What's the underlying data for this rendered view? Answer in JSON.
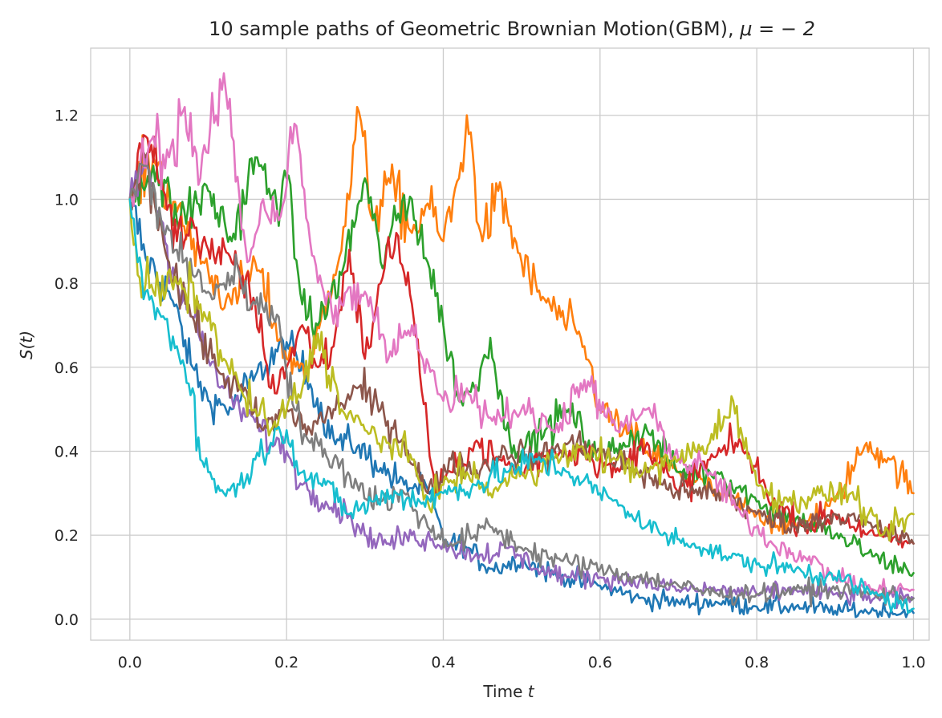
{
  "chart_data": {
    "type": "line",
    "title_text": "10 sample paths of Geometric Brownian Motion(GBM), ",
    "title_math": "μ = − 2",
    "xlabel_text": "Time ",
    "xlabel_math": "t",
    "ylabel": "S(t)",
    "xlim": [
      -0.05,
      1.02
    ],
    "ylim": [
      -0.05,
      1.36
    ],
    "xticks": [
      0.0,
      0.2,
      0.4,
      0.6,
      0.8,
      1.0
    ],
    "xtick_labels": [
      "0.0",
      "0.2",
      "0.4",
      "0.6",
      "0.8",
      "1.0"
    ],
    "yticks": [
      0.0,
      0.2,
      0.4,
      0.6,
      0.8,
      1.0,
      1.2
    ],
    "ytick_labels": [
      "0.0",
      "0.2",
      "0.4",
      "0.6",
      "0.8",
      "1.0",
      "1.2"
    ],
    "grid": true,
    "legend": "none",
    "series": [
      {
        "color": "#1f77b4",
        "x": [
          0,
          0.02,
          0.05,
          0.08,
          0.1,
          0.13,
          0.16,
          0.2,
          0.23,
          0.26,
          0.29,
          0.32,
          0.35,
          0.38,
          0.4,
          0.43,
          0.46,
          0.5,
          0.55,
          0.6,
          0.65,
          0.7,
          0.75,
          0.8,
          0.85,
          0.9,
          0.95,
          1.0
        ],
        "y": [
          1.0,
          0.86,
          0.78,
          0.6,
          0.52,
          0.5,
          0.58,
          0.66,
          0.56,
          0.43,
          0.41,
          0.36,
          0.32,
          0.31,
          0.19,
          0.17,
          0.12,
          0.14,
          0.1,
          0.08,
          0.05,
          0.04,
          0.04,
          0.03,
          0.03,
          0.02,
          0.02,
          0.015
        ]
      },
      {
        "color": "#ff7f0e",
        "x": [
          0,
          0.03,
          0.06,
          0.1,
          0.13,
          0.16,
          0.2,
          0.23,
          0.26,
          0.28,
          0.29,
          0.31,
          0.33,
          0.36,
          0.38,
          0.4,
          0.42,
          0.43,
          0.45,
          0.47,
          0.5,
          0.52,
          0.55,
          0.58,
          0.6,
          0.63,
          0.66,
          0.7,
          0.75,
          0.8,
          0.85,
          0.9,
          0.94,
          0.97,
          1.0
        ],
        "y": [
          1.0,
          1.1,
          0.97,
          0.83,
          0.75,
          0.85,
          0.62,
          0.6,
          0.82,
          1.0,
          1.22,
          0.95,
          1.05,
          0.92,
          0.99,
          0.9,
          1.05,
          1.2,
          0.9,
          1.02,
          0.85,
          0.78,
          0.72,
          0.65,
          0.5,
          0.45,
          0.4,
          0.35,
          0.3,
          0.25,
          0.22,
          0.28,
          0.42,
          0.38,
          0.3
        ]
      },
      {
        "color": "#2ca02c",
        "x": [
          0,
          0.03,
          0.06,
          0.1,
          0.13,
          0.16,
          0.18,
          0.2,
          0.22,
          0.24,
          0.27,
          0.3,
          0.32,
          0.34,
          0.36,
          0.38,
          0.4,
          0.42,
          0.44,
          0.46,
          0.48,
          0.5,
          0.53,
          0.56,
          0.6,
          0.63,
          0.66,
          0.7,
          0.75,
          0.8,
          0.85,
          0.9,
          0.95,
          1.0
        ],
        "y": [
          1.0,
          1.08,
          0.95,
          1.02,
          0.9,
          1.1,
          1.0,
          1.05,
          0.75,
          0.7,
          0.82,
          1.05,
          0.85,
          0.95,
          1.0,
          0.85,
          0.7,
          0.52,
          0.55,
          0.67,
          0.45,
          0.4,
          0.45,
          0.5,
          0.38,
          0.42,
          0.45,
          0.35,
          0.35,
          0.28,
          0.24,
          0.2,
          0.15,
          0.11
        ]
      },
      {
        "color": "#d62728",
        "x": [
          0,
          0.02,
          0.04,
          0.06,
          0.08,
          0.1,
          0.13,
          0.16,
          0.18,
          0.2,
          0.22,
          0.24,
          0.26,
          0.28,
          0.3,
          0.32,
          0.34,
          0.36,
          0.38,
          0.39,
          0.41,
          0.44,
          0.47,
          0.5,
          0.54,
          0.58,
          0.62,
          0.66,
          0.7,
          0.74,
          0.78,
          0.82,
          0.86,
          0.9,
          0.95,
          1.0
        ],
        "y": [
          1.0,
          1.15,
          1.05,
          0.9,
          0.95,
          0.88,
          0.85,
          0.75,
          0.55,
          0.6,
          0.7,
          0.6,
          0.65,
          0.88,
          0.62,
          0.8,
          0.92,
          0.75,
          0.45,
          0.3,
          0.35,
          0.42,
          0.38,
          0.35,
          0.4,
          0.4,
          0.35,
          0.42,
          0.3,
          0.38,
          0.42,
          0.28,
          0.22,
          0.25,
          0.2,
          0.18
        ]
      },
      {
        "color": "#9467bd",
        "x": [
          0,
          0.02,
          0.04,
          0.06,
          0.08,
          0.1,
          0.12,
          0.14,
          0.16,
          0.18,
          0.2,
          0.22,
          0.25,
          0.28,
          0.3,
          0.33,
          0.36,
          0.4,
          0.44,
          0.48,
          0.52,
          0.56,
          0.6,
          0.65,
          0.7,
          0.75,
          0.8,
          0.85,
          0.9,
          0.95,
          1.0
        ],
        "y": [
          1.0,
          1.1,
          0.95,
          0.8,
          0.72,
          0.62,
          0.55,
          0.5,
          0.47,
          0.42,
          0.4,
          0.32,
          0.28,
          0.25,
          0.2,
          0.18,
          0.2,
          0.18,
          0.15,
          0.17,
          0.12,
          0.1,
          0.1,
          0.09,
          0.07,
          0.07,
          0.06,
          0.07,
          0.06,
          0.05,
          0.05
        ]
      },
      {
        "color": "#8c564b",
        "x": [
          0,
          0.02,
          0.05,
          0.08,
          0.11,
          0.14,
          0.17,
          0.2,
          0.23,
          0.26,
          0.29,
          0.32,
          0.35,
          0.38,
          0.41,
          0.44,
          0.48,
          0.52,
          0.56,
          0.6,
          0.64,
          0.68,
          0.72,
          0.76,
          0.8,
          0.85,
          0.9,
          0.95,
          1.0
        ],
        "y": [
          1.0,
          1.1,
          0.85,
          0.72,
          0.6,
          0.55,
          0.45,
          0.5,
          0.45,
          0.5,
          0.55,
          0.5,
          0.42,
          0.3,
          0.38,
          0.35,
          0.4,
          0.38,
          0.42,
          0.4,
          0.36,
          0.32,
          0.3,
          0.3,
          0.25,
          0.22,
          0.25,
          0.22,
          0.18
        ]
      },
      {
        "color": "#e377c2",
        "x": [
          0,
          0.03,
          0.05,
          0.07,
          0.09,
          0.11,
          0.12,
          0.13,
          0.15,
          0.17,
          0.19,
          0.21,
          0.23,
          0.25,
          0.27,
          0.3,
          0.33,
          0.36,
          0.4,
          0.43,
          0.46,
          0.5,
          0.54,
          0.58,
          0.62,
          0.66,
          0.7,
          0.74,
          0.78,
          0.82,
          0.86,
          0.9,
          0.95,
          1.0
        ],
        "y": [
          1.0,
          1.15,
          1.1,
          1.22,
          1.05,
          1.2,
          1.3,
          1.15,
          0.85,
          1.0,
          0.95,
          1.18,
          0.9,
          0.75,
          0.75,
          0.78,
          0.62,
          0.7,
          0.52,
          0.55,
          0.48,
          0.5,
          0.45,
          0.57,
          0.45,
          0.5,
          0.38,
          0.35,
          0.25,
          0.18,
          0.15,
          0.1,
          0.07,
          0.07
        ]
      },
      {
        "color": "#7f7f7f",
        "x": [
          0,
          0.02,
          0.04,
          0.06,
          0.08,
          0.1,
          0.12,
          0.14,
          0.16,
          0.19,
          0.21,
          0.23,
          0.26,
          0.29,
          0.32,
          0.35,
          0.38,
          0.41,
          0.44,
          0.46,
          0.5,
          0.55,
          0.6,
          0.65,
          0.7,
          0.75,
          0.8,
          0.85,
          0.9,
          0.95,
          1.0
        ],
        "y": [
          1.0,
          1.08,
          0.95,
          0.88,
          0.82,
          0.78,
          0.8,
          0.82,
          0.75,
          0.72,
          0.5,
          0.42,
          0.38,
          0.32,
          0.28,
          0.3,
          0.22,
          0.18,
          0.2,
          0.22,
          0.17,
          0.14,
          0.12,
          0.1,
          0.08,
          0.06,
          0.06,
          0.07,
          0.07,
          0.06,
          0.05
        ]
      },
      {
        "color": "#bcbd22",
        "x": [
          0,
          0.01,
          0.03,
          0.06,
          0.09,
          0.12,
          0.14,
          0.16,
          0.18,
          0.2,
          0.22,
          0.24,
          0.27,
          0.3,
          0.33,
          0.36,
          0.38,
          0.4,
          0.43,
          0.46,
          0.5,
          0.54,
          0.58,
          0.62,
          0.66,
          0.7,
          0.74,
          0.77,
          0.8,
          0.84,
          0.88,
          0.92,
          0.96,
          1.0
        ],
        "y": [
          1.0,
          0.82,
          0.78,
          0.8,
          0.75,
          0.62,
          0.55,
          0.5,
          0.45,
          0.5,
          0.55,
          0.68,
          0.5,
          0.45,
          0.42,
          0.38,
          0.28,
          0.32,
          0.35,
          0.3,
          0.35,
          0.38,
          0.4,
          0.38,
          0.35,
          0.38,
          0.42,
          0.52,
          0.32,
          0.28,
          0.3,
          0.3,
          0.2,
          0.25
        ]
      },
      {
        "color": "#17becf",
        "x": [
          0,
          0.01,
          0.02,
          0.04,
          0.06,
          0.08,
          0.09,
          0.1,
          0.12,
          0.14,
          0.16,
          0.18,
          0.2,
          0.22,
          0.25,
          0.28,
          0.31,
          0.34,
          0.37,
          0.4,
          0.44,
          0.48,
          0.52,
          0.56,
          0.6,
          0.64,
          0.68,
          0.72,
          0.76,
          0.8,
          0.85,
          0.9,
          0.95,
          1.0
        ],
        "y": [
          1.0,
          0.85,
          0.78,
          0.72,
          0.65,
          0.55,
          0.38,
          0.35,
          0.3,
          0.32,
          0.38,
          0.42,
          0.45,
          0.35,
          0.32,
          0.25,
          0.28,
          0.3,
          0.28,
          0.3,
          0.32,
          0.35,
          0.38,
          0.35,
          0.3,
          0.25,
          0.2,
          0.18,
          0.15,
          0.13,
          0.12,
          0.1,
          0.06,
          0.025
        ]
      }
    ]
  }
}
